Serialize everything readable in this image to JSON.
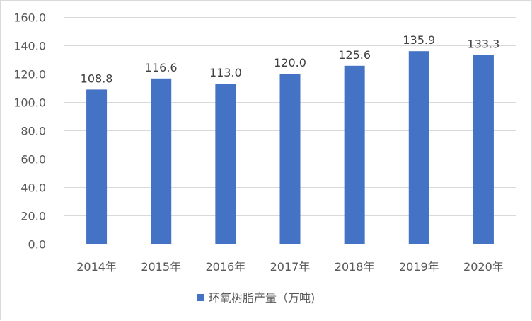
{
  "chart_data": {
    "type": "bar",
    "categories": [
      "2014年",
      "2015年",
      "2016年",
      "2017年",
      "2018年",
      "2019年",
      "2020年"
    ],
    "series": [
      {
        "name": "环氧树脂产量（万吨)",
        "values": [
          108.8,
          116.6,
          113.0,
          120.0,
          125.6,
          135.9,
          133.3
        ],
        "value_labels": [
          "108.8",
          "116.6",
          "113.0",
          "120.0",
          "125.6",
          "135.9",
          "133.3"
        ],
        "color": "#4472c4"
      }
    ],
    "ylim": [
      0,
      160
    ],
    "yticks": [
      0,
      20,
      40,
      60,
      80,
      100,
      120,
      140,
      160
    ],
    "ytick_labels": [
      "0.0",
      "20.0",
      "40.0",
      "60.0",
      "80.0",
      "100.0",
      "120.0",
      "140.0",
      "160.0"
    ],
    "title": "",
    "xlabel": "",
    "ylabel": "",
    "grid": true,
    "legend_position": "bottom"
  }
}
